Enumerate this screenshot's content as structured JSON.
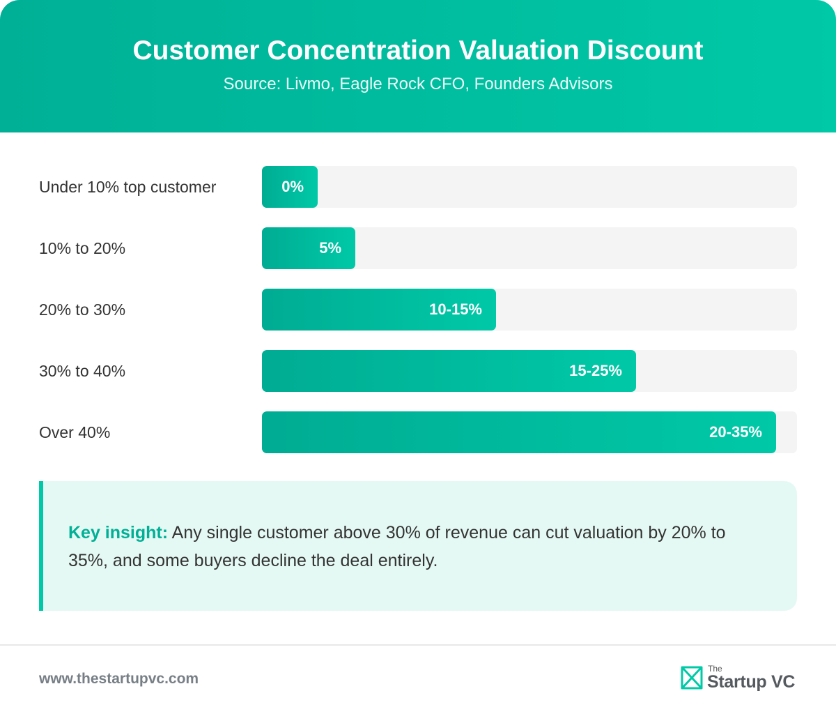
{
  "header": {
    "title": "Customer Concentration Valuation Discount",
    "subtitle": "Source: Livmo, Eagle Rock CFO, Founders Advisors"
  },
  "chart_data": {
    "type": "bar",
    "orientation": "horizontal",
    "categories": [
      "Under 10% top customer",
      "10% to 20%",
      "20% to 30%",
      "30% to 40%",
      "Over 40%"
    ],
    "values": [
      0,
      5,
      12.5,
      20,
      27.5
    ],
    "value_labels": [
      "0%",
      "5%",
      "10-15%",
      "15-25%",
      "20-35%"
    ],
    "value_axis": "discount (%)",
    "grid": false,
    "bar_color": "#00c9a7"
  },
  "insight": {
    "label": "Key insight:",
    "text": "Any single customer above 30% of revenue can cut valuation by 20% to 35%, and some buyers decline the deal entirely."
  },
  "footer": {
    "url": "www.thestartupvc.com",
    "logo_small": "The",
    "logo_main": "Startup VC",
    "logo_icon": "startupvc-logo-icon"
  },
  "colors": {
    "accent": "#00c9a7",
    "accent_dark": "#00ac93",
    "track": "#f4f4f4",
    "insight_bg": "#e5f9f4"
  }
}
